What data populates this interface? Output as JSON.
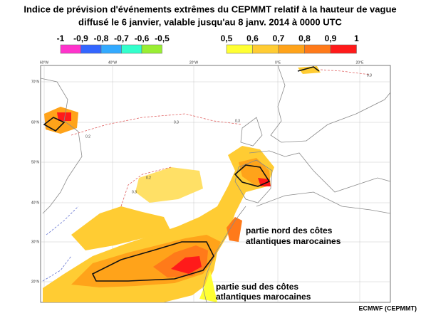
{
  "title": {
    "line1": "Indice de prévision d'événements extrêmes du CEPMMT relatif à la hauteur de vague",
    "line2": "diffusé le 6 janvier, valable jusqu'au 8 janv. 2014 à 0000 UTC"
  },
  "legend": {
    "negative": {
      "labels": [
        "-1",
        "-0,9",
        "-0,8",
        "-0,7",
        "-0,6",
        "-0,5"
      ],
      "colors": [
        "#ff33cc",
        "#3366ff",
        "#33aaff",
        "#33ffcc",
        "#99ee33"
      ]
    },
    "positive": {
      "labels": [
        "0,5",
        "0,6",
        "0,7",
        "0,8",
        "0,9",
        "1"
      ],
      "colors": [
        "#ffff33",
        "#ffcc33",
        "#ffa31a",
        "#ff7a1a",
        "#ff1a1a"
      ]
    }
  },
  "map": {
    "lon_labels": [
      "60°W",
      "40°W",
      "20°W",
      "0°E",
      "20°E"
    ],
    "lat_labels": [
      "70°N",
      "60°N",
      "50°N",
      "40°N",
      "30°N",
      "20°N"
    ],
    "contour_labels": [
      "0.3",
      "0.2",
      "0.3",
      "0.3",
      "0.2",
      "0.3"
    ]
  },
  "annotations": {
    "north": [
      "partie nord des côtes",
      "atlantiques marocaines"
    ],
    "south": [
      "partie sud des côtes",
      "atlantiques marocaines"
    ]
  },
  "credit": "ECMWF (CEPMMT)"
}
